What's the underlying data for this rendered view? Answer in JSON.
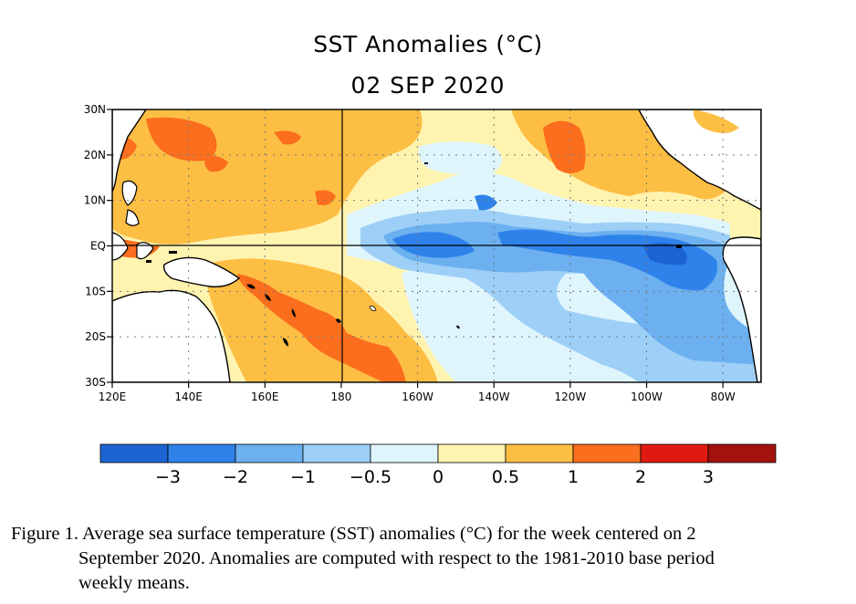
{
  "title": "SST Anomalies (°C)",
  "date": "02 SEP 2020",
  "map": {
    "region": "Tropical Pacific",
    "lat_range": [
      -30,
      30
    ],
    "lon_range": [
      120,
      290
    ],
    "lat_ticks": [
      "30N",
      "20N",
      "10N",
      "EQ",
      "10S",
      "20S",
      "30S"
    ],
    "lon_ticks": [
      "120E",
      "140E",
      "160E",
      "180",
      "160W",
      "140W",
      "120W",
      "100W",
      "80W"
    ],
    "colors": {
      "lt_m3": "#1c64d2",
      "m3_m2": "#2e82ea",
      "m2_m1": "#6cb0f0",
      "m1_m05": "#9dcff7",
      "m05_0": "#dff5fc",
      "0_05": "#fff3b0",
      "05_1": "#fdbe44",
      "1_2": "#fa6e1e",
      "2_3": "#e01a10",
      "gt_3": "#a4120d",
      "land": "#ffffff"
    }
  },
  "colorbar": {
    "colors": [
      "#1c64d2",
      "#2e82ea",
      "#6cb0f0",
      "#9dcff7",
      "#dff5fc",
      "#fff3b0",
      "#fdbe44",
      "#fa6e1e",
      "#e01a10",
      "#a4120d"
    ],
    "labels": [
      "−3",
      "−2",
      "−1",
      "−0.5",
      "0",
      "0.5",
      "1",
      "2",
      "3"
    ]
  },
  "caption": {
    "line1": "Figure 1. Average sea surface temperature (SST) anomalies (°C) for the week centered on 2",
    "line2": "September 2020.  Anomalies are computed with respect to the 1981-2010 base period",
    "line3": "weekly means."
  }
}
